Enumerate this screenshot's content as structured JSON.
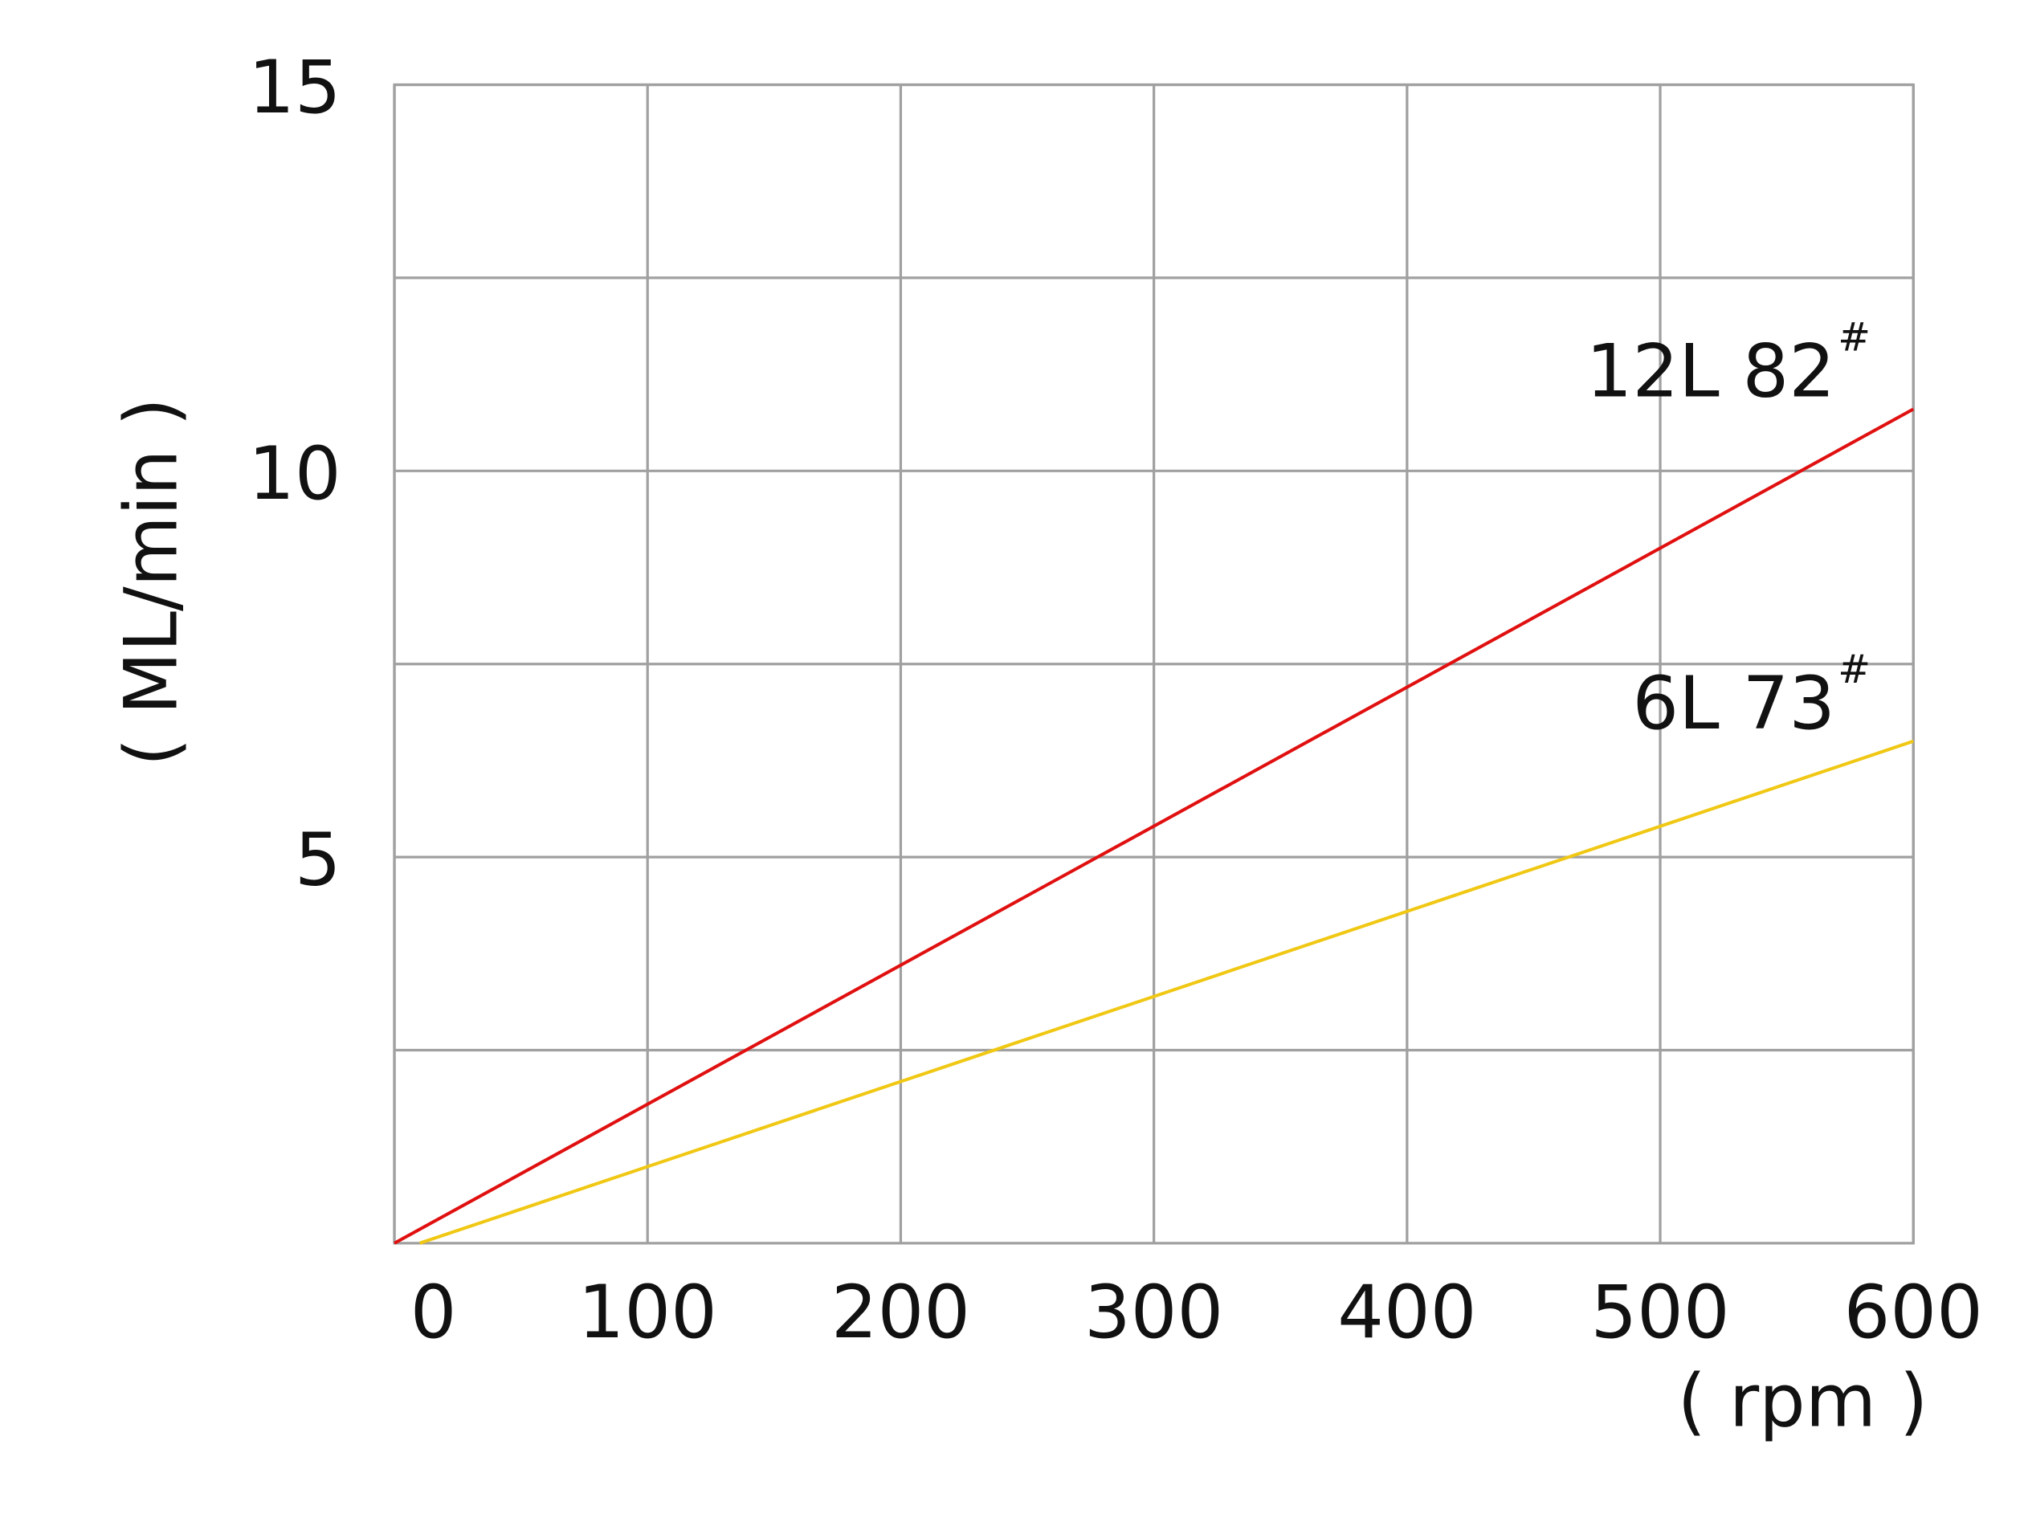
{
  "chart_data": {
    "type": "line",
    "x_axis_label": "( rpm )",
    "y_axis_label": "( ML/min )",
    "xlim": [
      0,
      600
    ],
    "xticks": [
      0,
      100,
      200,
      300,
      400,
      500,
      600
    ],
    "ylim": [
      0,
      15
    ],
    "yticks": [
      5,
      10,
      15
    ],
    "ygrid": [
      2.5,
      7.5,
      12.5
    ],
    "grid": true,
    "series": [
      {
        "name": "12L   82",
        "superscript": "#",
        "color": "#e01010",
        "x": [
          0,
          600
        ],
        "values": [
          0,
          10.8
        ]
      },
      {
        "name": "6L   73",
        "superscript": "#",
        "color": "#f0c814",
        "x": [
          10,
          600
        ],
        "values": [
          0,
          6.5
        ]
      }
    ]
  }
}
